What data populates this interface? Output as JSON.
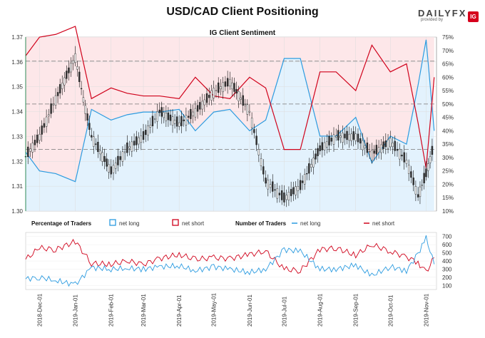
{
  "title": "USD/CAD Client Positioning",
  "logo": {
    "name": "DAILYFX",
    "sub": "provided by",
    "badge": "IG"
  },
  "colors": {
    "net_long": "#2b9be0",
    "net_short": "#d0021b",
    "long_fill": "#e3f2fd",
    "short_fill": "#fde7e9",
    "candle": "#111111"
  },
  "chart_data": [
    {
      "type": "line",
      "title": "IG Client Sentiment",
      "y_price_range": [
        1.3,
        1.37
      ],
      "y_price_ticks": [
        "1.30",
        "1.31",
        "1.32",
        "1.33",
        "1.34",
        "1.35",
        "1.36",
        "1.37"
      ],
      "y_pct_range": [
        10,
        75
      ],
      "y_pct_ticks": [
        "10%",
        "15%",
        "20%",
        "25%",
        "30%",
        "35%",
        "40%",
        "45%",
        "50%",
        "55%",
        "60%",
        "65%",
        "70%",
        "75%"
      ],
      "reference_lines_pct": [
        33,
        50,
        66
      ],
      "grid": true,
      "series": [
        {
          "name": "net long",
          "unit": "%",
          "x": [
            "2018-11-19",
            "2018-12-01",
            "2018-12-15",
            "2019-01-01",
            "2019-01-15",
            "2019-02-01",
            "2019-02-15",
            "2019-03-01",
            "2019-03-15",
            "2019-04-01",
            "2019-04-15",
            "2019-05-01",
            "2019-05-15",
            "2019-06-01",
            "2019-06-15",
            "2019-07-01",
            "2019-07-15",
            "2019-08-01",
            "2019-08-15",
            "2019-09-01",
            "2019-09-15",
            "2019-10-01",
            "2019-10-15",
            "2019-10-25",
            "2019-11-01",
            "2019-11-08"
          ],
          "values": [
            32,
            25,
            24,
            21,
            48,
            44,
            46,
            47,
            47,
            48,
            40,
            47,
            48,
            40,
            44,
            67,
            67,
            38,
            38,
            45,
            28,
            38,
            35,
            57,
            74,
            40
          ]
        },
        {
          "name": "net short",
          "unit": "%",
          "x": [
            "2018-11-19",
            "2018-12-01",
            "2018-12-15",
            "2019-01-01",
            "2019-01-15",
            "2019-02-01",
            "2019-02-15",
            "2019-03-01",
            "2019-03-15",
            "2019-04-01",
            "2019-04-15",
            "2019-05-01",
            "2019-05-15",
            "2019-06-01",
            "2019-06-15",
            "2019-07-01",
            "2019-07-15",
            "2019-08-01",
            "2019-08-15",
            "2019-09-01",
            "2019-09-15",
            "2019-10-01",
            "2019-10-15",
            "2019-10-25",
            "2019-11-01",
            "2019-11-08"
          ],
          "values": [
            68,
            75,
            76,
            79,
            52,
            56,
            54,
            53,
            53,
            52,
            60,
            53,
            52,
            60,
            56,
            33,
            33,
            62,
            62,
            55,
            72,
            62,
            65,
            43,
            26,
            60
          ]
        },
        {
          "name": "USD/CAD",
          "unit": "price",
          "x": [
            "2018-11-19",
            "2018-12-01",
            "2018-12-15",
            "2019-01-01",
            "2019-01-08",
            "2019-01-15",
            "2019-02-01",
            "2019-02-15",
            "2019-03-01",
            "2019-03-15",
            "2019-04-01",
            "2019-04-15",
            "2019-05-01",
            "2019-05-15",
            "2019-06-01",
            "2019-06-15",
            "2019-07-01",
            "2019-07-15",
            "2019-08-01",
            "2019-08-15",
            "2019-09-01",
            "2019-09-15",
            "2019-10-01",
            "2019-10-15",
            "2019-10-25",
            "2019-11-01",
            "2019-11-08"
          ],
          "values": [
            1.322,
            1.33,
            1.345,
            1.362,
            1.345,
            1.33,
            1.316,
            1.325,
            1.33,
            1.34,
            1.335,
            1.34,
            1.348,
            1.352,
            1.34,
            1.312,
            1.305,
            1.31,
            1.325,
            1.33,
            1.33,
            1.323,
            1.328,
            1.32,
            1.306,
            1.315,
            1.327
          ]
        }
      ]
    },
    {
      "type": "line",
      "title": "Number of Traders",
      "y_range": [
        50,
        750
      ],
      "y_ticks": [
        "100",
        "200",
        "300",
        "400",
        "500",
        "600",
        "700"
      ],
      "x_ticks": [
        "2018-Dec-01",
        "2019-Jan-01",
        "2019-Feb-01",
        "2019-Mar-01",
        "2019-Apr-01",
        "2019-May-01",
        "2019-Jun-01",
        "2019-Jul-01",
        "2019-Aug-01",
        "2019-Sep-01",
        "2019-Oct-01",
        "2019-Nov-01"
      ],
      "series": [
        {
          "name": "net long",
          "x": [
            "2018-11-19",
            "2018-12-01",
            "2018-12-15",
            "2019-01-01",
            "2019-01-15",
            "2019-02-01",
            "2019-02-15",
            "2019-03-01",
            "2019-03-15",
            "2019-04-01",
            "2019-04-15",
            "2019-05-01",
            "2019-05-15",
            "2019-06-01",
            "2019-06-15",
            "2019-07-01",
            "2019-07-15",
            "2019-08-01",
            "2019-08-15",
            "2019-09-01",
            "2019-09-15",
            "2019-10-01",
            "2019-10-15",
            "2019-10-25",
            "2019-11-01",
            "2019-11-08"
          ],
          "values": [
            180,
            200,
            160,
            110,
            320,
            300,
            310,
            300,
            330,
            340,
            280,
            330,
            300,
            260,
            300,
            540,
            520,
            300,
            300,
            350,
            220,
            330,
            280,
            490,
            680,
            360
          ]
        },
        {
          "name": "net short",
          "x": [
            "2018-11-19",
            "2018-12-01",
            "2018-12-15",
            "2019-01-01",
            "2019-01-15",
            "2019-02-01",
            "2019-02-15",
            "2019-03-01",
            "2019-03-15",
            "2019-04-01",
            "2019-04-15",
            "2019-05-01",
            "2019-05-15",
            "2019-06-01",
            "2019-06-15",
            "2019-07-01",
            "2019-07-15",
            "2019-08-01",
            "2019-08-15",
            "2019-09-01",
            "2019-09-15",
            "2019-10-01",
            "2019-10-15",
            "2019-10-25",
            "2019-11-01",
            "2019-11-08"
          ],
          "values": [
            420,
            560,
            540,
            640,
            370,
            360,
            400,
            360,
            430,
            480,
            420,
            440,
            430,
            480,
            520,
            300,
            280,
            540,
            560,
            470,
            600,
            520,
            450,
            380,
            260,
            440
          ]
        }
      ]
    }
  ],
  "legend": {
    "percentage_label": "Percentage of Traders",
    "number_label": "Number of Traders",
    "net_long": "net long",
    "net_short": "net short"
  }
}
